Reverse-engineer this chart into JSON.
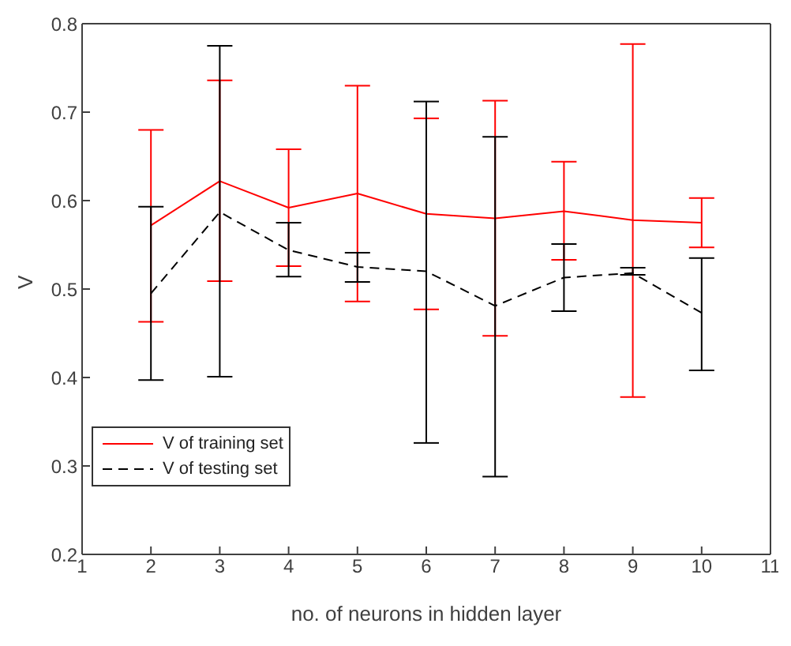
{
  "chart_data": {
    "type": "line",
    "xlabel": "no. of neurons in hidden layer",
    "ylabel": "V",
    "x": [
      2,
      3,
      4,
      5,
      6,
      7,
      8,
      9,
      10
    ],
    "series": [
      {
        "name": "V of training set",
        "color": "#ff0000",
        "line_style": "solid",
        "values": [
          0.572,
          0.622,
          0.592,
          0.608,
          0.585,
          0.58,
          0.588,
          0.578,
          0.575
        ],
        "errors": [
          [
            0.463,
            0.68
          ],
          [
            0.509,
            0.736
          ],
          [
            0.526,
            0.658
          ],
          [
            0.486,
            0.73
          ],
          [
            0.477,
            0.693
          ],
          [
            0.447,
            0.713
          ],
          [
            0.533,
            0.644
          ],
          [
            0.378,
            0.777
          ],
          [
            0.547,
            0.603
          ]
        ]
      },
      {
        "name": "V of testing set",
        "color": "#000000",
        "line_style": "dashed",
        "values": [
          0.495,
          0.587,
          0.544,
          0.525,
          0.52,
          0.481,
          0.513,
          0.518,
          0.473
        ],
        "errors": [
          [
            0.397,
            0.593
          ],
          [
            0.401,
            0.775
          ],
          [
            0.514,
            0.575
          ],
          [
            0.508,
            0.541
          ],
          [
            0.326,
            0.712
          ],
          [
            0.288,
            0.672
          ],
          [
            0.475,
            0.551
          ],
          [
            0.516,
            0.524
          ],
          [
            0.408,
            0.535
          ]
        ]
      }
    ],
    "xlim": [
      1,
      11
    ],
    "xticks": [
      1,
      2,
      3,
      4,
      5,
      6,
      7,
      8,
      9,
      10,
      11
    ],
    "ylim": [
      0.2,
      0.8
    ],
    "yticks": [
      0.2,
      0.3,
      0.4,
      0.5,
      0.6,
      0.7,
      0.8
    ],
    "grid": false,
    "legend": "bottom left",
    "marker": "none"
  }
}
